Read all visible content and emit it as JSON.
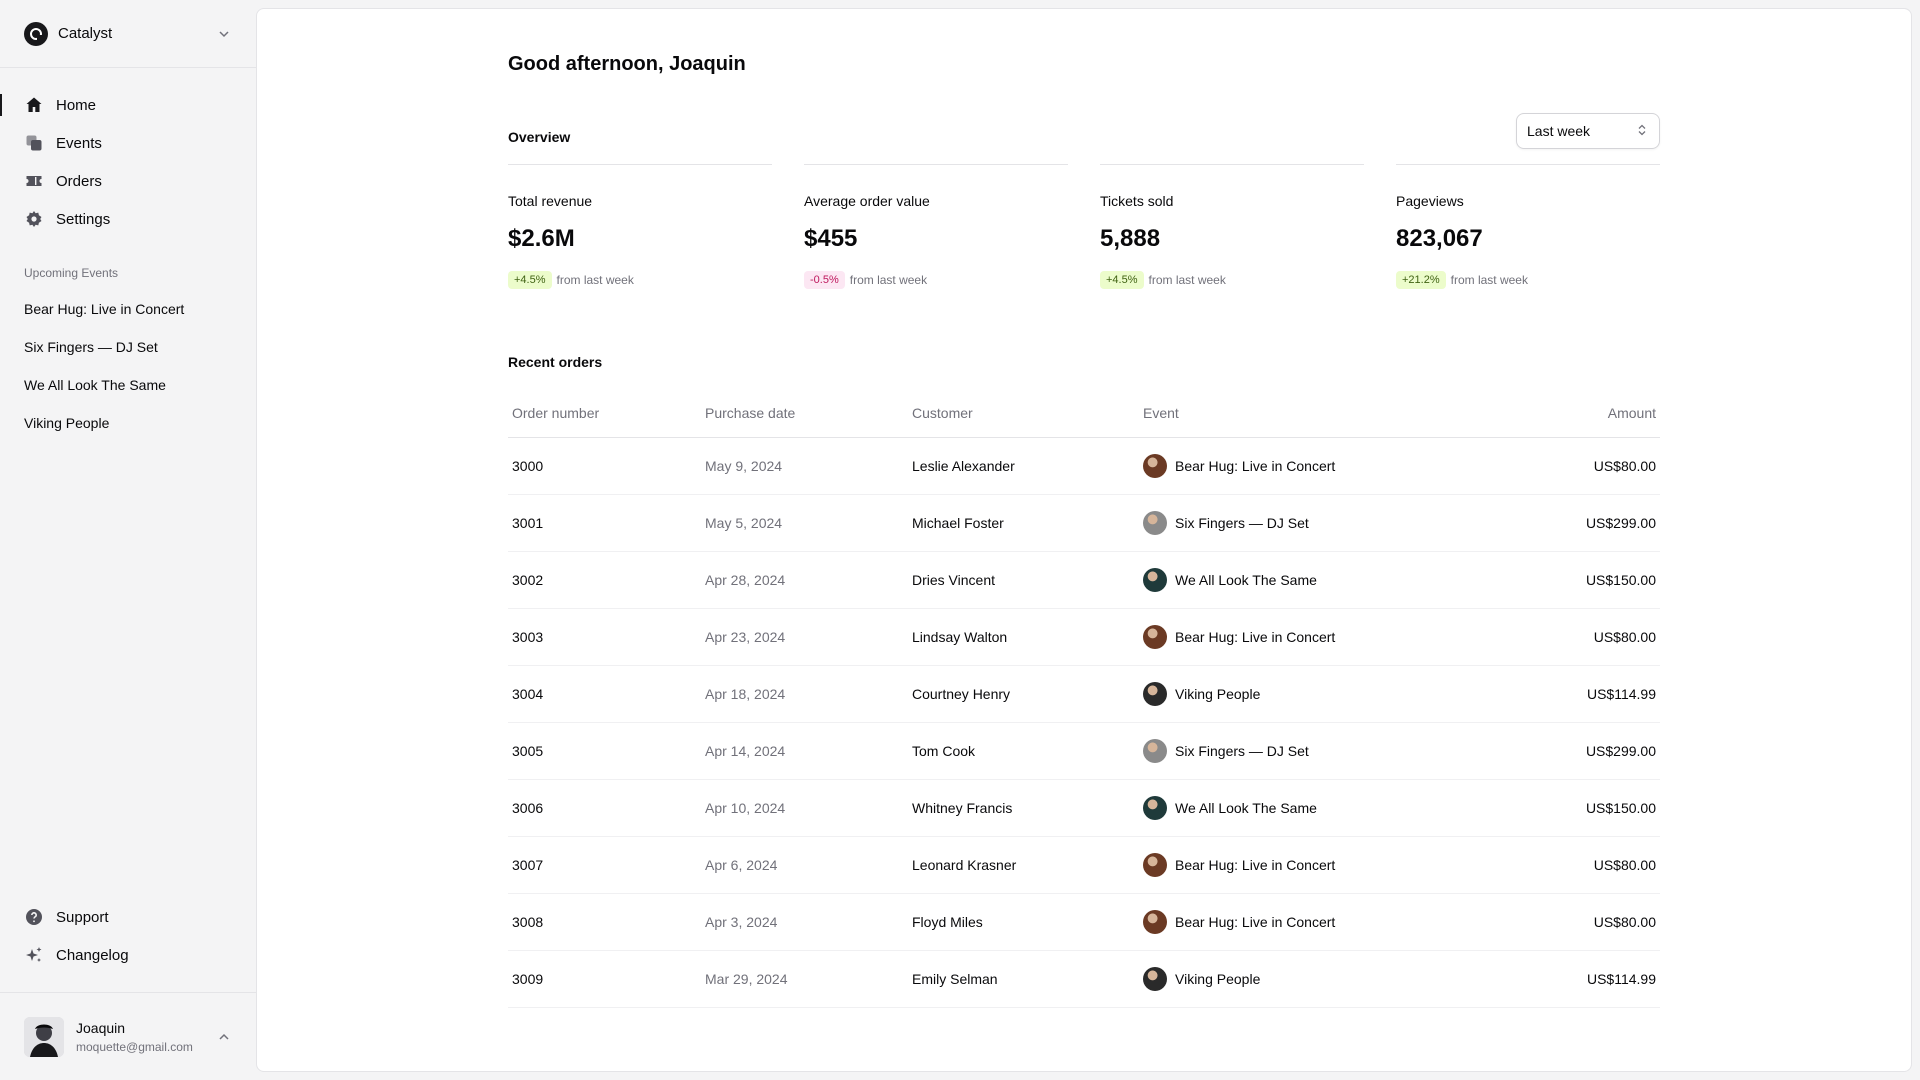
{
  "sidebar": {
    "team_name": "Catalyst",
    "nav": [
      {
        "label": "Home",
        "icon": "home-icon",
        "active": true
      },
      {
        "label": "Events",
        "icon": "events-icon",
        "active": false
      },
      {
        "label": "Orders",
        "icon": "ticket-icon",
        "active": false
      },
      {
        "label": "Settings",
        "icon": "gear-icon",
        "active": false
      }
    ],
    "upcoming_heading": "Upcoming Events",
    "upcoming": [
      "Bear Hug: Live in Concert",
      "Six Fingers — DJ Set",
      "We All Look The Same",
      "Viking People"
    ],
    "bottom_nav": [
      {
        "label": "Support",
        "icon": "question-icon"
      },
      {
        "label": "Changelog",
        "icon": "sparkles-icon"
      }
    ],
    "user": {
      "name": "Joaquin",
      "email": "moquette@gmail.com"
    }
  },
  "main": {
    "greeting": "Good afternoon, Joaquin",
    "overview_title": "Overview",
    "period": "Last week",
    "stats": [
      {
        "label": "Total revenue",
        "value": "$2.6M",
        "change": "+4.5%",
        "trend": "up",
        "suffix": "from last week"
      },
      {
        "label": "Average order value",
        "value": "$455",
        "change": "-0.5%",
        "trend": "down",
        "suffix": "from last week"
      },
      {
        "label": "Tickets sold",
        "value": "5,888",
        "change": "+4.5%",
        "trend": "up",
        "suffix": "from last week"
      },
      {
        "label": "Pageviews",
        "value": "823,067",
        "change": "+21.2%",
        "trend": "up",
        "suffix": "from last week"
      }
    ],
    "orders_title": "Recent orders",
    "columns": {
      "order": "Order number",
      "date": "Purchase date",
      "customer": "Customer",
      "event": "Event",
      "amount": "Amount"
    },
    "orders": [
      {
        "id": "3000",
        "date": "May 9, 2024",
        "customer": "Leslie Alexander",
        "event": "Bear Hug: Live in Concert",
        "amount": "US$80.00"
      },
      {
        "id": "3001",
        "date": "May 5, 2024",
        "customer": "Michael Foster",
        "event": "Six Fingers — DJ Set",
        "amount": "US$299.00"
      },
      {
        "id": "3002",
        "date": "Apr 28, 2024",
        "customer": "Dries Vincent",
        "event": "We All Look The Same",
        "amount": "US$150.00"
      },
      {
        "id": "3003",
        "date": "Apr 23, 2024",
        "customer": "Lindsay Walton",
        "event": "Bear Hug: Live in Concert",
        "amount": "US$80.00"
      },
      {
        "id": "3004",
        "date": "Apr 18, 2024",
        "customer": "Courtney Henry",
        "event": "Viking People",
        "amount": "US$114.99"
      },
      {
        "id": "3005",
        "date": "Apr 14, 2024",
        "customer": "Tom Cook",
        "event": "Six Fingers — DJ Set",
        "amount": "US$299.00"
      },
      {
        "id": "3006",
        "date": "Apr 10, 2024",
        "customer": "Whitney Francis",
        "event": "We All Look The Same",
        "amount": "US$150.00"
      },
      {
        "id": "3007",
        "date": "Apr 6, 2024",
        "customer": "Leonard Krasner",
        "event": "Bear Hug: Live in Concert",
        "amount": "US$80.00"
      },
      {
        "id": "3008",
        "date": "Apr 3, 2024",
        "customer": "Floyd Miles",
        "event": "Bear Hug: Live in Concert",
        "amount": "US$80.00"
      },
      {
        "id": "3009",
        "date": "Mar 29, 2024",
        "customer": "Emily Selman",
        "event": "Viking People",
        "amount": "US$114.99"
      }
    ]
  },
  "colors": {
    "badge_up_bg": "#ecfccb",
    "badge_up_fg": "#3f6212",
    "badge_down_bg": "#fce7f3",
    "badge_down_fg": "#be185d",
    "event_avatar": {
      "Bear Hug: Live in Concert": "#6b3a24",
      "Six Fingers — DJ Set": "#8a8a8a",
      "We All Look The Same": "#1f3a3a",
      "Viking People": "#2a2a2a"
    }
  }
}
